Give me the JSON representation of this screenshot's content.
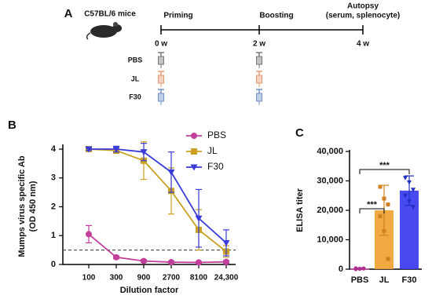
{
  "schematic": {
    "label": "A",
    "subject": "C57BL/6 mice",
    "events": [
      {
        "title": "Priming",
        "time": "0 w"
      },
      {
        "title": "Boosting",
        "time": "2 w"
      },
      {
        "title": "Autopsy",
        "note": "(serum, splenocyte)",
        "time": "4 w"
      }
    ],
    "groups": [
      "PBS",
      "JL",
      "F30"
    ]
  },
  "chart_data": [
    {
      "type": "line",
      "panel_label": "B",
      "y_label": [
        "Mumps virus specific Ab",
        "(OD 450 nm)"
      ],
      "x_label": "Dilution factor",
      "categories": [
        "100",
        "300",
        "900",
        "2700",
        "8100",
        "24,300"
      ],
      "ylim": [
        0,
        4
      ],
      "yticks": [
        0,
        1,
        2,
        3,
        4
      ],
      "cutoff": 0.5,
      "series": [
        {
          "name": "PBS",
          "color": "#c2409c",
          "marker": "circle",
          "values": [
            1.05,
            0.25,
            0.12,
            0.08,
            0.07,
            0.09
          ],
          "errors": [
            0.3,
            0.05,
            0.05,
            0.04,
            0.03,
            0.05
          ]
        },
        {
          "name": "JL",
          "color": "#c9a020",
          "marker": "square",
          "values": [
            4.0,
            3.95,
            3.6,
            2.55,
            1.2,
            0.45
          ],
          "errors": [
            0.05,
            0.1,
            0.65,
            0.8,
            0.7,
            0.2
          ]
        },
        {
          "name": "F30",
          "color": "#3b3bdb",
          "marker": "triangle",
          "values": [
            4.0,
            4.0,
            3.9,
            3.2,
            1.6,
            0.75
          ],
          "errors": [
            0.05,
            0.1,
            0.3,
            0.7,
            1.0,
            0.45
          ]
        }
      ]
    },
    {
      "type": "bar",
      "panel_label": "C",
      "y_label": "ELISA titer",
      "categories": [
        "PBS",
        "JL",
        "F30"
      ],
      "values": [
        200,
        20000,
        26700
      ],
      "errors": [
        150,
        8500,
        5000
      ],
      "colors": [
        "#d050b0",
        "#f0a030",
        "#3535f0"
      ],
      "point_colors": [
        "#b03090",
        "#d08020",
        "#2030c0"
      ],
      "points": [
        [
          0,
          100,
          200,
          300,
          150,
          250
        ],
        [
          28000,
          24000,
          22000,
          18000,
          13000,
          3500
        ],
        [
          31000,
          29500,
          27000,
          25000,
          23000,
          21000
        ]
      ],
      "ylim": [
        0,
        40000
      ],
      "yticks": [
        {
          "value": 0,
          "label": "0"
        },
        {
          "value": 10000,
          "label": "10,000"
        },
        {
          "value": 20000,
          "label": "20,000"
        },
        {
          "value": 30000,
          "label": "30,000"
        },
        {
          "value": 40000,
          "label": "40,000"
        }
      ],
      "significance": [
        {
          "label": "***"
        },
        {
          "label": "***"
        }
      ]
    }
  ]
}
